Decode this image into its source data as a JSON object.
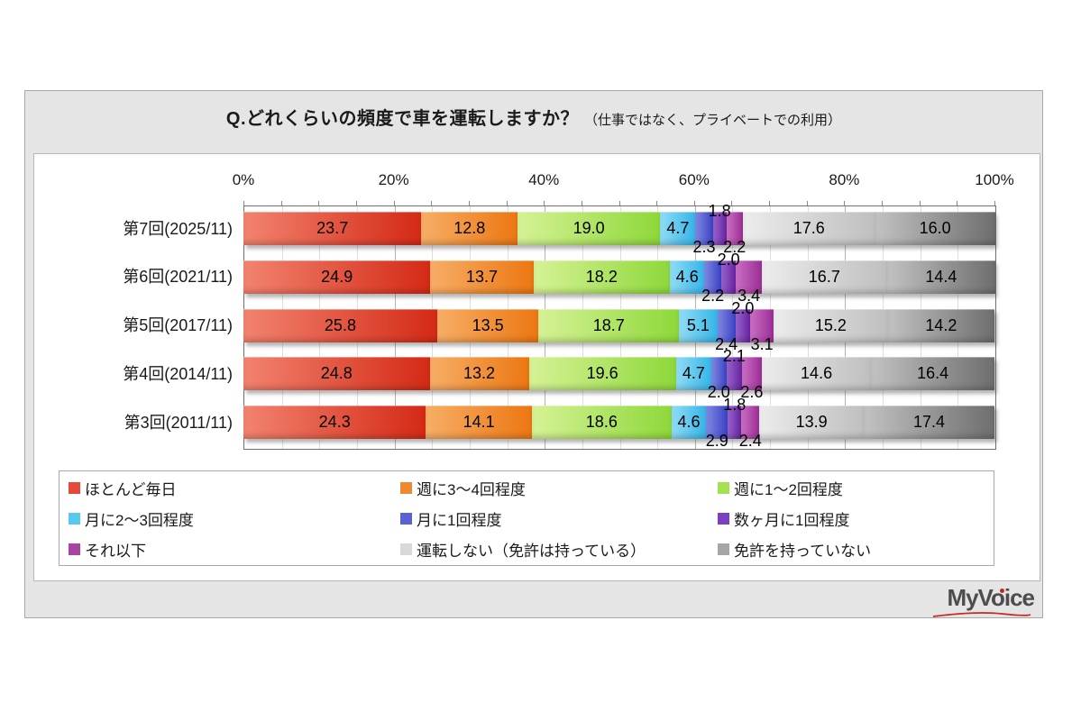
{
  "colors": {
    "page_bg": "#ffffff",
    "panel_bg": "#e5e5e5",
    "panel_border": "#a8a8a8",
    "inner_bg": "#ffffff",
    "plot_border": "#707070",
    "grid_minor": "#dedede",
    "grid_major": "#b3b3b3",
    "label_text": "#000000",
    "logo_gray": "#4d4d4d",
    "logo_red": "#c62828"
  },
  "logo": {
    "text": "MyVoice"
  },
  "chart_data": {
    "type": "bar",
    "orientation": "horizontal-stacked",
    "title": "Q.どれくらいの頻度で車を運転しますか？",
    "subtitle": "（仕事ではなく、プライベートでの利用）",
    "x_axis": {
      "min": 0,
      "max": 100,
      "minor_step": 5,
      "major_step": 20,
      "ticks": [
        "0%",
        "20%",
        "40%",
        "60%",
        "80%",
        "100%"
      ]
    },
    "categories": [
      "第7回(2025/11)",
      "第6回(2021/11)",
      "第5回(2017/11)",
      "第4回(2014/11)",
      "第3回(2011/11)"
    ],
    "series": [
      {
        "name": "ほとんど毎日",
        "values": [
          23.7,
          24.9,
          25.8,
          24.8,
          24.3
        ],
        "label_position": "inside",
        "fill_from": "#f2836f",
        "fill_to": "#d42a16",
        "legend_color": "#e5493a"
      },
      {
        "name": "週に3～4回程度",
        "values": [
          12.8,
          13.7,
          13.5,
          13.2,
          14.1
        ],
        "label_position": "inside",
        "fill_from": "#f7ae66",
        "fill_to": "#ec7712",
        "legend_color": "#ef8833"
      },
      {
        "name": "週に1～2回程度",
        "values": [
          19.0,
          18.2,
          18.7,
          19.6,
          18.6
        ],
        "label_position": "inside",
        "fill_from": "#d6f296",
        "fill_to": "#8ed83a",
        "legend_color": "#a2e152"
      },
      {
        "name": "月に2～3回程度",
        "values": [
          4.7,
          4.6,
          5.1,
          4.7,
          4.6
        ],
        "label_position": "inside",
        "fill_from": "#90ddf5",
        "fill_to": "#35b5e9",
        "legend_color": "#58c9ee"
      },
      {
        "name": "月に1回程度",
        "values": [
          2.3,
          2.2,
          2.4,
          2.0,
          2.9
        ],
        "label_position": "below",
        "fill_from": "#8289e2",
        "fill_to": "#3a43c4",
        "legend_color": "#5a62d2"
      },
      {
        "name": "数ヶ月に1回程度",
        "values": [
          1.8,
          2.0,
          2.0,
          2.1,
          1.8
        ],
        "label_position": "above",
        "fill_from": "#9a63cf",
        "fill_to": "#66249f",
        "legend_color": "#7d3fc1"
      },
      {
        "name": "それ以下",
        "values": [
          2.2,
          3.4,
          3.1,
          2.6,
          2.4
        ],
        "label_position": "below",
        "fill_from": "#cb70c5",
        "fill_to": "#9c2d95",
        "legend_color": "#a944a2"
      },
      {
        "name": "運転しない（免許は持っている）",
        "values": [
          17.6,
          16.7,
          15.2,
          14.6,
          13.9
        ],
        "label_position": "inside",
        "fill_from": "#ececec",
        "fill_to": "#bfbfbf",
        "legend_color": "#d9d9d9"
      },
      {
        "name": "免許を持っていない",
        "values": [
          16.0,
          14.4,
          14.2,
          16.4,
          17.4
        ],
        "label_position": "inside",
        "fill_from": "#c2c2c2",
        "fill_to": "#6e6e6e",
        "legend_color": "#a6a6a6"
      }
    ],
    "legend": {
      "position": "bottom",
      "columns": 3,
      "order": "row-major"
    }
  }
}
